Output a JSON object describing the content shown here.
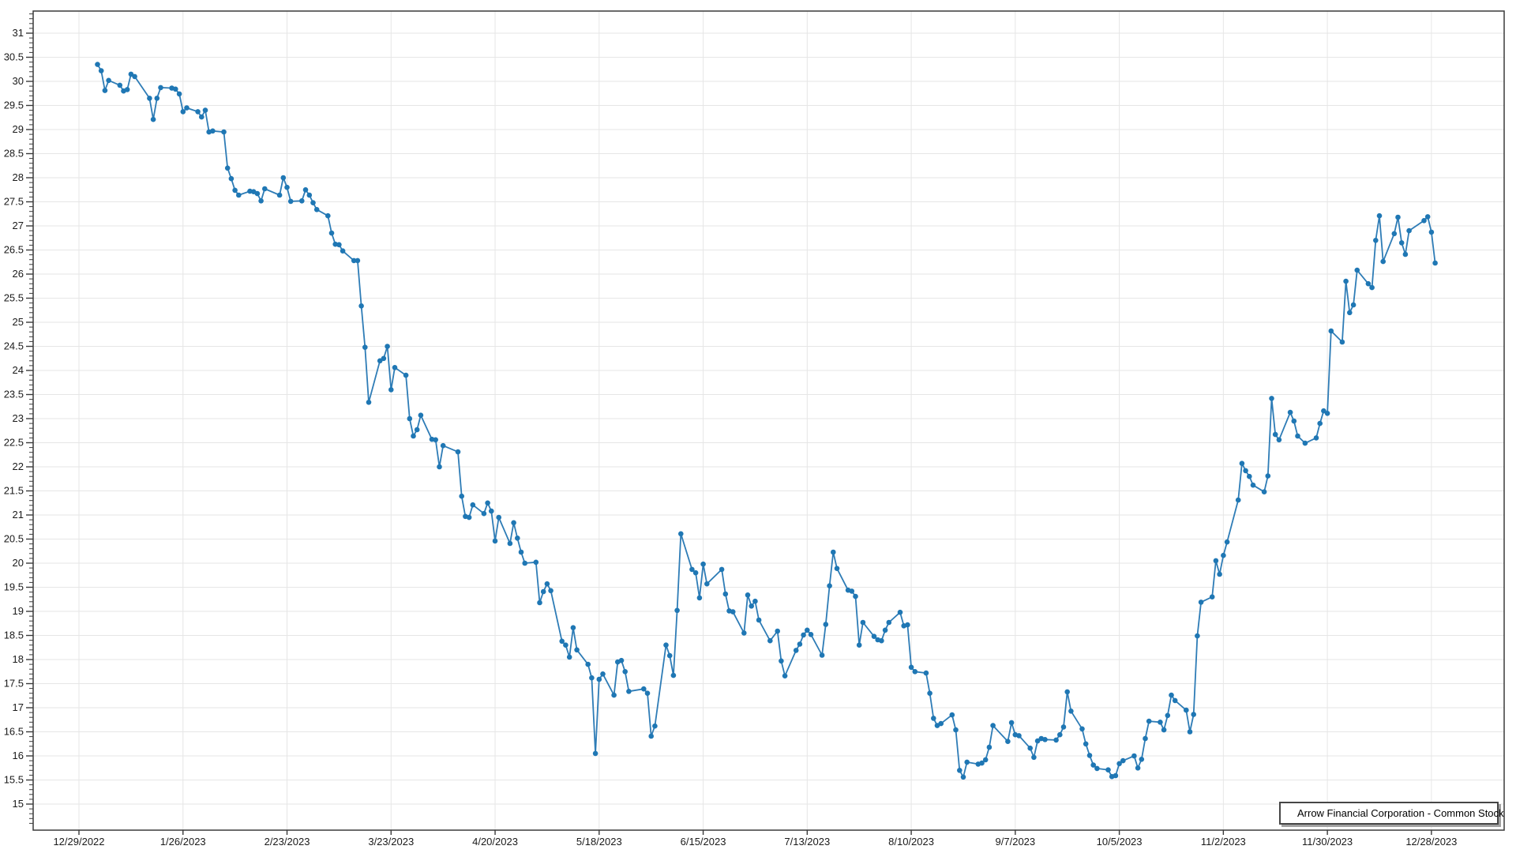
{
  "colors": {
    "series_line": "#2e7cb6",
    "series_marker": "#1f77b4",
    "grid": "#e6e6e6",
    "axis": "#3a3a3a",
    "text": "#1a1a1a",
    "background": "#ffffff",
    "legend_border": "#464646",
    "legend_shadow": "#a0a0a0"
  },
  "chart_data": {
    "type": "line",
    "title": "",
    "grid": true,
    "legend_position": "bottom-right",
    "ylim": [
      14.45,
      31.46
    ],
    "x_axis": {
      "start_date": "12/29/2022",
      "tick_interval_days": 28,
      "tick_labels": [
        "12/29/2022",
        "1/26/2023",
        "2/23/2023",
        "3/23/2023",
        "4/20/2023",
        "5/18/2023",
        "6/15/2023",
        "7/13/2023",
        "8/10/2023",
        "9/7/2023",
        "10/5/2023",
        "11/2/2023",
        "11/30/2023",
        "12/28/2023"
      ]
    },
    "y_axis": {
      "tick_min": 15,
      "tick_max": 31,
      "tick_step": 0.5,
      "minor_tick_step": 0.1,
      "labels": [
        "15",
        "15.5",
        "16",
        "16.5",
        "17",
        "17.5",
        "18",
        "18.5",
        "19",
        "19.5",
        "20",
        "20.5",
        "21",
        "21.5",
        "22",
        "22.5",
        "23",
        "23.5",
        "24",
        "24.5",
        "25",
        "25.5",
        "26",
        "26.5",
        "27",
        "27.5",
        "28",
        "28.5",
        "29",
        "29.5",
        "30",
        "30.5",
        "31"
      ]
    },
    "series": [
      {
        "name": "Arrow Financial Corporation - Common Stock",
        "marker": "circle",
        "dates": [
          "1/3/2023",
          "1/4/2023",
          "1/5/2023",
          "1/6/2023",
          "1/9/2023",
          "1/10/2023",
          "1/11/2023",
          "1/12/2023",
          "1/13/2023",
          "1/17/2023",
          "1/18/2023",
          "1/19/2023",
          "1/20/2023",
          "1/23/2023",
          "1/24/2023",
          "1/25/2023",
          "1/26/2023",
          "1/27/2023",
          "1/30/2023",
          "1/31/2023",
          "2/1/2023",
          "2/2/2023",
          "2/3/2023",
          "2/6/2023",
          "2/7/2023",
          "2/8/2023",
          "2/9/2023",
          "2/10/2023",
          "2/13/2023",
          "2/14/2023",
          "2/15/2023",
          "2/16/2023",
          "2/17/2023",
          "2/21/2023",
          "2/22/2023",
          "2/23/2023",
          "2/24/2023",
          "2/27/2023",
          "2/28/2023",
          "3/1/2023",
          "3/2/2023",
          "3/3/2023",
          "3/6/2023",
          "3/7/2023",
          "3/8/2023",
          "3/9/2023",
          "3/10/2023",
          "3/13/2023",
          "3/14/2023",
          "3/15/2023",
          "3/16/2023",
          "3/17/2023",
          "3/20/2023",
          "3/21/2023",
          "3/22/2023",
          "3/23/2023",
          "3/24/2023",
          "3/27/2023",
          "3/28/2023",
          "3/29/2023",
          "3/30/2023",
          "3/31/2023",
          "4/3/2023",
          "4/4/2023",
          "4/5/2023",
          "4/6/2023",
          "4/10/2023",
          "4/11/2023",
          "4/12/2023",
          "4/13/2023",
          "4/14/2023",
          "4/17/2023",
          "4/18/2023",
          "4/19/2023",
          "4/20/2023",
          "4/21/2023",
          "4/24/2023",
          "4/25/2023",
          "4/26/2023",
          "4/27/2023",
          "4/28/2023",
          "5/1/2023",
          "5/2/2023",
          "5/3/2023",
          "5/4/2023",
          "5/5/2023",
          "5/8/2023",
          "5/9/2023",
          "5/10/2023",
          "5/11/2023",
          "5/12/2023",
          "5/15/2023",
          "5/16/2023",
          "5/17/2023",
          "5/18/2023",
          "5/19/2023",
          "5/22/2023",
          "5/23/2023",
          "5/24/2023",
          "5/25/2023",
          "5/26/2023",
          "5/30/2023",
          "5/31/2023",
          "6/1/2023",
          "6/2/2023",
          "6/5/2023",
          "6/6/2023",
          "6/7/2023",
          "6/8/2023",
          "6/9/2023",
          "6/12/2023",
          "6/13/2023",
          "6/14/2023",
          "6/15/2023",
          "6/16/2023",
          "6/20/2023",
          "6/21/2023",
          "6/22/2023",
          "6/23/2023",
          "6/26/2023",
          "6/27/2023",
          "6/28/2023",
          "6/29/2023",
          "6/30/2023",
          "7/3/2023",
          "7/5/2023",
          "7/6/2023",
          "7/7/2023",
          "7/10/2023",
          "7/11/2023",
          "7/12/2023",
          "7/13/2023",
          "7/14/2023",
          "7/17/2023",
          "7/18/2023",
          "7/19/2023",
          "7/20/2023",
          "7/21/2023",
          "7/24/2023",
          "7/25/2023",
          "7/26/2023",
          "7/27/2023",
          "7/28/2023",
          "7/31/2023",
          "8/1/2023",
          "8/2/2023",
          "8/3/2023",
          "8/4/2023",
          "8/7/2023",
          "8/8/2023",
          "8/9/2023",
          "8/10/2023",
          "8/11/2023",
          "8/14/2023",
          "8/15/2023",
          "8/16/2023",
          "8/17/2023",
          "8/18/2023",
          "8/21/2023",
          "8/22/2023",
          "8/23/2023",
          "8/24/2023",
          "8/25/2023",
          "8/28/2023",
          "8/29/2023",
          "8/30/2023",
          "8/31/2023",
          "9/1/2023",
          "9/5/2023",
          "9/6/2023",
          "9/7/2023",
          "9/8/2023",
          "9/11/2023",
          "9/12/2023",
          "9/13/2023",
          "9/14/2023",
          "9/15/2023",
          "9/18/2023",
          "9/19/2023",
          "9/20/2023",
          "9/21/2023",
          "9/22/2023",
          "9/25/2023",
          "9/26/2023",
          "9/27/2023",
          "9/28/2023",
          "9/29/2023",
          "10/2/2023",
          "10/3/2023",
          "10/4/2023",
          "10/5/2023",
          "10/6/2023",
          "10/9/2023",
          "10/10/2023",
          "10/11/2023",
          "10/12/2023",
          "10/13/2023",
          "10/16/2023",
          "10/17/2023",
          "10/18/2023",
          "10/19/2023",
          "10/20/2023",
          "10/23/2023",
          "10/24/2023",
          "10/25/2023",
          "10/26/2023",
          "10/27/2023",
          "10/30/2023",
          "10/31/2023",
          "11/1/2023",
          "11/2/2023",
          "11/3/2023",
          "11/6/2023",
          "11/7/2023",
          "11/8/2023",
          "11/9/2023",
          "11/10/2023",
          "11/13/2023",
          "11/14/2023",
          "11/15/2023",
          "11/16/2023",
          "11/17/2023",
          "11/20/2023",
          "11/21/2023",
          "11/22/2023",
          "11/24/2023",
          "11/27/2023",
          "11/28/2023",
          "11/29/2023",
          "11/30/2023",
          "12/1/2023",
          "12/4/2023",
          "12/5/2023",
          "12/6/2023",
          "12/7/2023",
          "12/8/2023",
          "12/11/2023",
          "12/12/2023",
          "12/13/2023",
          "12/14/2023",
          "12/15/2023",
          "12/18/2023",
          "12/19/2023",
          "12/20/2023",
          "12/21/2023",
          "12/22/2023",
          "12/26/2023",
          "12/27/2023",
          "12/28/2023",
          "12/29/2023"
        ],
        "values": [
          30.35,
          30.22,
          29.81,
          30.02,
          29.92,
          29.8,
          29.83,
          30.15,
          30.1,
          29.65,
          29.21,
          29.65,
          29.87,
          29.86,
          29.84,
          29.74,
          29.37,
          29.45,
          29.37,
          29.26,
          29.4,
          28.95,
          28.97,
          28.95,
          28.2,
          27.98,
          27.74,
          27.64,
          27.72,
          27.71,
          27.67,
          27.52,
          27.77,
          27.64,
          28.0,
          27.8,
          27.51,
          27.52,
          27.75,
          27.64,
          27.48,
          27.34,
          27.21,
          26.85,
          26.62,
          26.61,
          26.48,
          26.28,
          26.28,
          25.34,
          24.48,
          23.34,
          24.2,
          24.25,
          24.5,
          23.6,
          24.06,
          23.9,
          23.0,
          22.64,
          22.77,
          23.07,
          22.57,
          22.56,
          22.0,
          22.44,
          22.31,
          21.39,
          20.97,
          20.95,
          21.21,
          21.03,
          21.25,
          21.08,
          20.46,
          20.95,
          20.41,
          20.84,
          20.52,
          20.23,
          20.0,
          20.02,
          19.18,
          19.41,
          19.57,
          19.43,
          18.38,
          18.3,
          18.05,
          18.66,
          18.2,
          17.9,
          17.62,
          16.05,
          17.59,
          17.7,
          17.26,
          17.95,
          17.98,
          17.75,
          17.34,
          17.39,
          17.3,
          16.41,
          16.62,
          18.3,
          18.08,
          17.67,
          19.02,
          20.61,
          19.87,
          19.8,
          19.28,
          19.98,
          19.57,
          19.87,
          19.36,
          19.01,
          18.99,
          18.55,
          19.34,
          19.11,
          19.21,
          18.82,
          18.39,
          18.59,
          17.97,
          17.66,
          18.19,
          18.32,
          18.51,
          18.61,
          18.52,
          18.09,
          18.73,
          19.53,
          20.23,
          19.89,
          19.44,
          19.42,
          19.31,
          18.3,
          18.77,
          18.48,
          18.41,
          18.39,
          18.61,
          18.77,
          18.98,
          18.7,
          18.72,
          17.84,
          17.75,
          17.72,
          17.3,
          16.78,
          16.63,
          16.67,
          16.85,
          16.54,
          15.7,
          15.56,
          15.87,
          15.83,
          15.85,
          15.92,
          16.18,
          16.63,
          16.3,
          16.69,
          16.44,
          16.42,
          16.16,
          15.97,
          16.31,
          16.36,
          16.34,
          16.33,
          16.44,
          16.6,
          17.33,
          16.93,
          16.56,
          16.25,
          16.01,
          15.81,
          15.74,
          15.71,
          15.57,
          15.59,
          15.84,
          15.9,
          16.0,
          15.75,
          15.93,
          16.36,
          16.72,
          16.7,
          16.54,
          16.84,
          17.26,
          17.15,
          16.95,
          16.5,
          16.86,
          18.49,
          19.19,
          19.3,
          20.05,
          19.77,
          20.16,
          20.44,
          21.31,
          22.07,
          21.92,
          21.8,
          21.62,
          21.48,
          21.81,
          23.42,
          22.67,
          22.56,
          23.13,
          22.95,
          22.64,
          22.49,
          22.6,
          22.9,
          23.16,
          23.11,
          24.82,
          24.59,
          25.85,
          25.2,
          25.36,
          26.08,
          25.8,
          25.72,
          26.7,
          27.21,
          26.26,
          26.84,
          27.18,
          26.65,
          26.41,
          26.9,
          27.11,
          27.19,
          26.87,
          26.23
        ]
      }
    ]
  }
}
